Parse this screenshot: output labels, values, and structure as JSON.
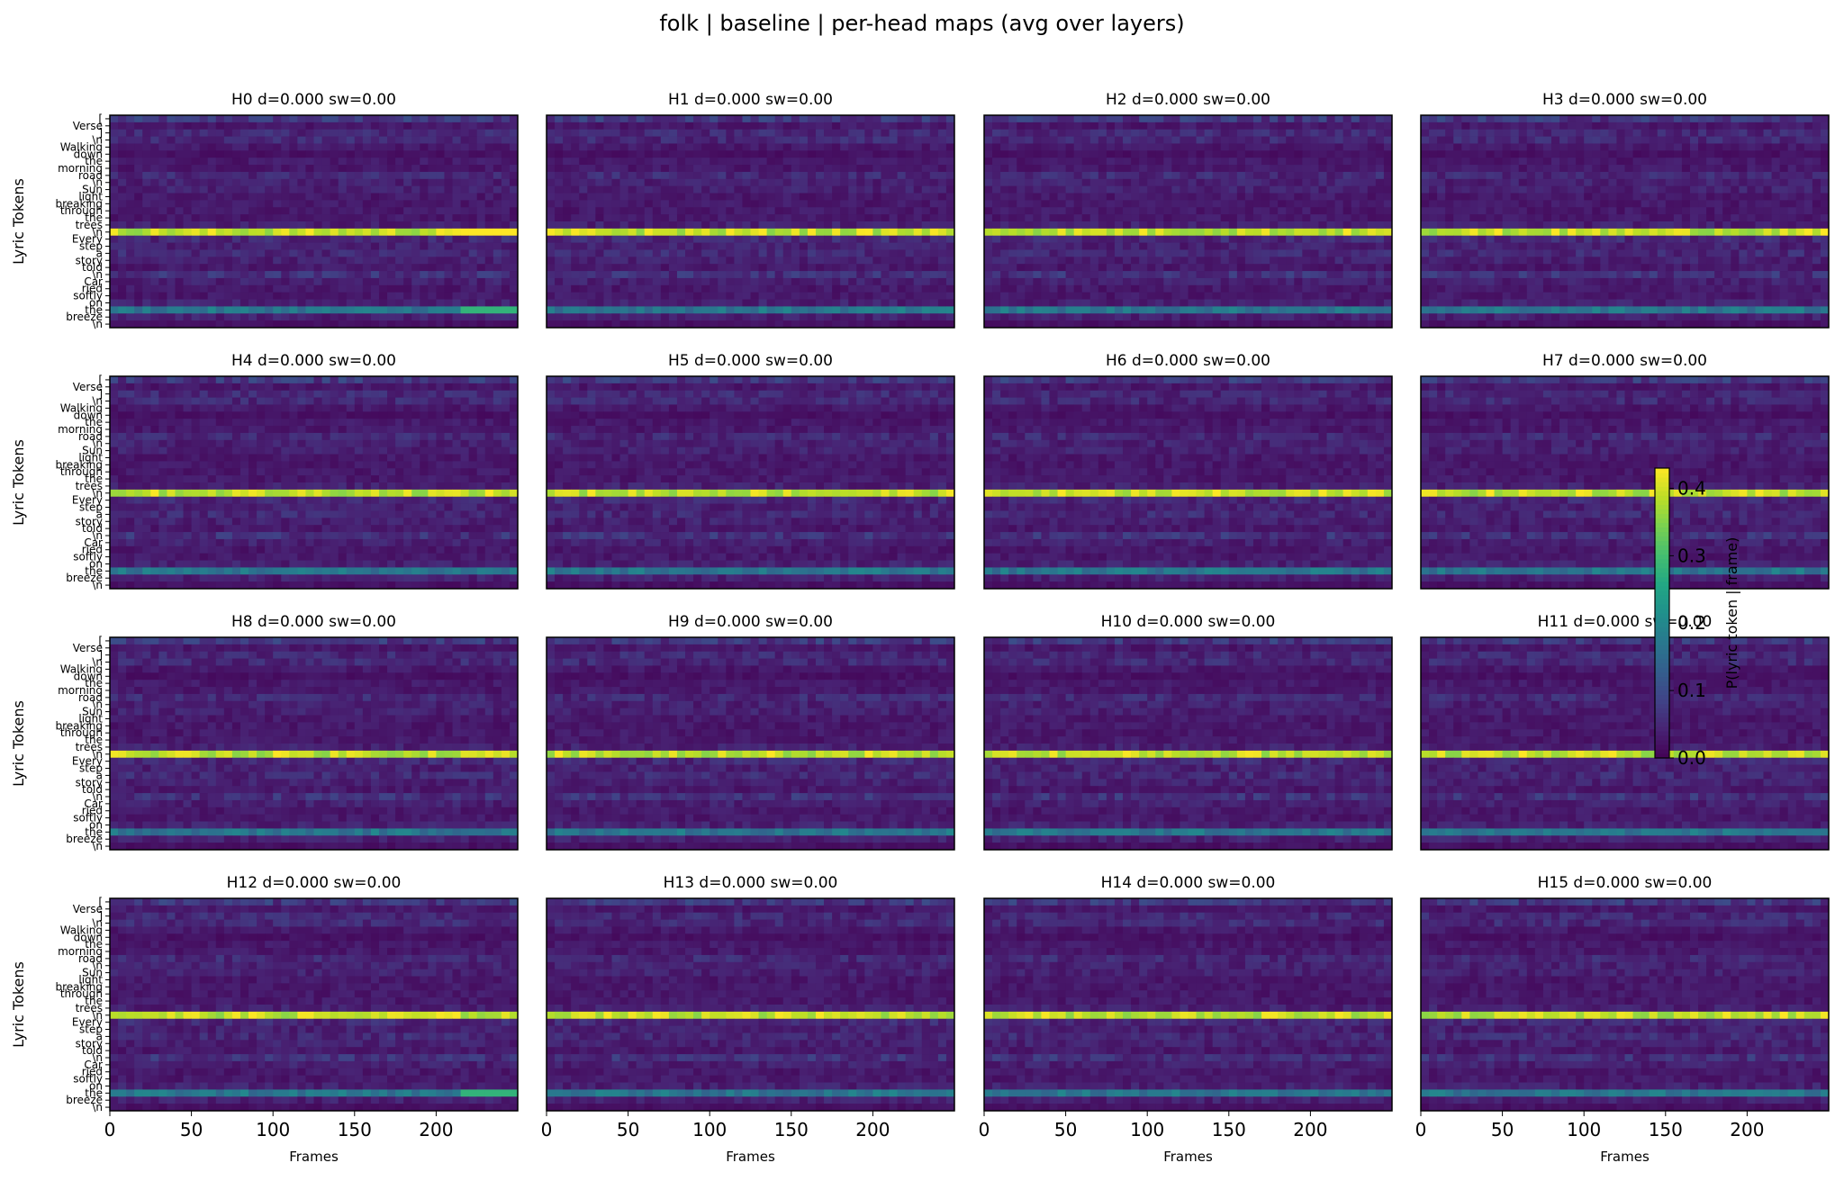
{
  "chart_data": {
    "type": "heatmap",
    "title": "folk | baseline | per-head maps (avg over layers)",
    "grid_layout": {
      "rows": 4,
      "cols": 4
    },
    "xlabel": "Frames",
    "ylabel": "Lyric Tokens",
    "x_range": [
      0,
      250
    ],
    "x_ticks": [
      0,
      50,
      100,
      150,
      200
    ],
    "y_tokens": [
      "[",
      "Verse",
      "]",
      "\\n",
      "Walking",
      "down",
      "the",
      "morning",
      "road",
      "\\n",
      "Sun",
      "light",
      "breaking",
      "through",
      "the",
      "trees",
      "\\n",
      "Every",
      "step",
      "a",
      "story",
      "told",
      "\\n",
      "Car",
      "ried",
      "softly",
      "on",
      "the",
      "breeze",
      "\\n"
    ],
    "panels": [
      {
        "head": "H0",
        "title": "H0 d=0.000 sw=0.00"
      },
      {
        "head": "H1",
        "title": "H1 d=0.000 sw=0.00"
      },
      {
        "head": "H2",
        "title": "H2 d=0.000 sw=0.00"
      },
      {
        "head": "H3",
        "title": "H3 d=0.000 sw=0.00"
      },
      {
        "head": "H4",
        "title": "H4 d=0.000 sw=0.00"
      },
      {
        "head": "H5",
        "title": "H5 d=0.000 sw=0.00"
      },
      {
        "head": "H6",
        "title": "H6 d=0.000 sw=0.00"
      },
      {
        "head": "H7",
        "title": "H7 d=0.000 sw=0.00"
      },
      {
        "head": "H8",
        "title": "H8 d=0.000 sw=0.00"
      },
      {
        "head": "H9",
        "title": "H9 d=0.000 sw=0.00"
      },
      {
        "head": "H10",
        "title": "H10 d=0.000 sw=0.00"
      },
      {
        "head": "H11",
        "title": "H11 d=0.000 sw=0.00"
      },
      {
        "head": "H12",
        "title": "H12 d=0.000 sw=0.00"
      },
      {
        "head": "H13",
        "title": "H13 d=0.000 sw=0.00"
      },
      {
        "head": "H14",
        "title": "H14 d=0.000 sw=0.00"
      },
      {
        "head": "H15",
        "title": "H15 d=0.000 sw=0.00"
      }
    ],
    "colorbar": {
      "label": "P(lyric token | frame)",
      "range": [
        0,
        0.43
      ],
      "ticks": [
        0.0,
        0.1,
        0.2,
        0.3,
        0.4
      ],
      "tick_labels": [
        "0.0",
        "0.1",
        "0.2",
        "0.3",
        "0.4"
      ],
      "colormap": "viridis"
    },
    "dominant_token_row": 16,
    "dominant_token_value": 0.43,
    "secondary_token_row": 27,
    "secondary_token_value": 0.2,
    "row_base_values": [
      0.07,
      0.03,
      0.05,
      0.05,
      0.03,
      0.02,
      0.03,
      0.03,
      0.05,
      0.04,
      0.04,
      0.03,
      0.03,
      0.03,
      0.03,
      0.04,
      0.43,
      0.05,
      0.04,
      0.05,
      0.04,
      0.03,
      0.06,
      0.04,
      0.03,
      0.03,
      0.04,
      0.2,
      0.04,
      0.02
    ]
  },
  "colors": {
    "background": "#ffffff",
    "heat_low": "#440154",
    "heat_high": "#fde725"
  }
}
